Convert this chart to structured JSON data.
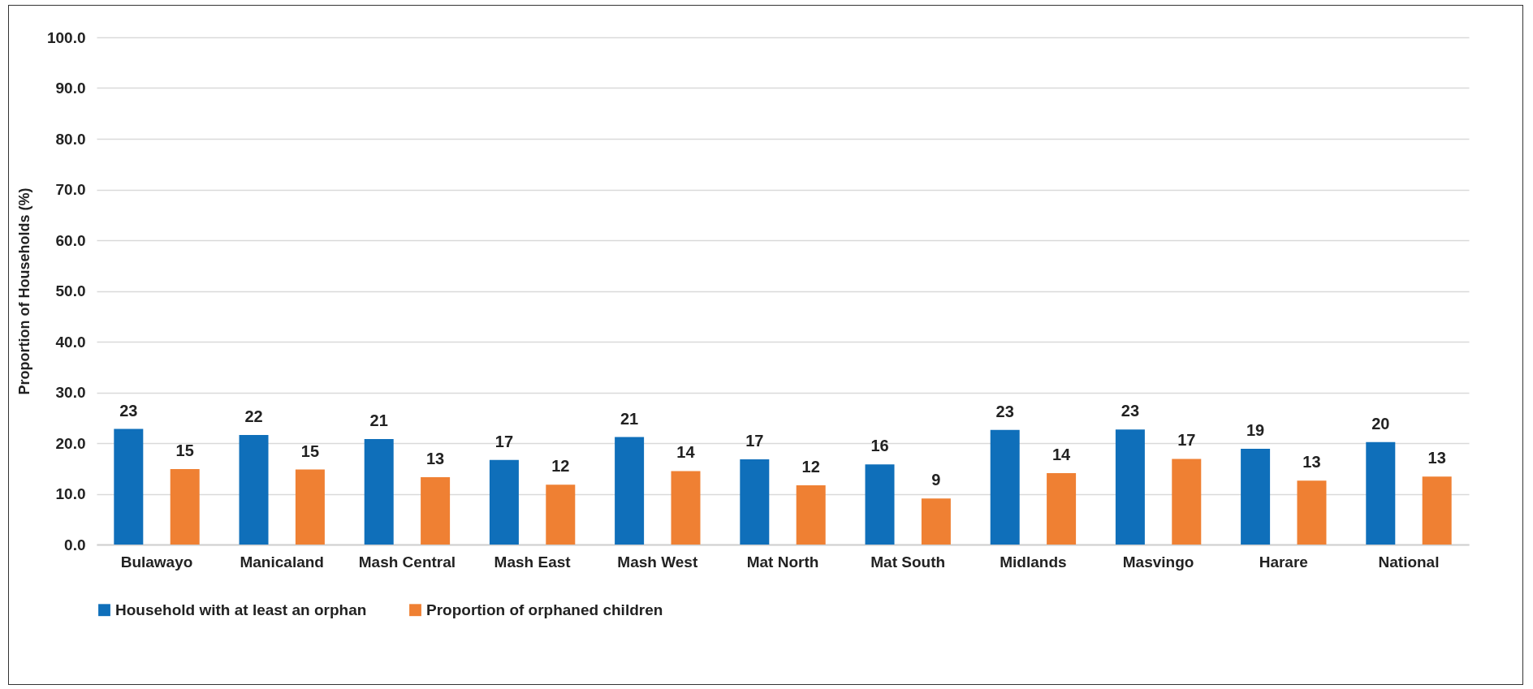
{
  "chart_data": {
    "type": "bar",
    "ylabel": "Proportion of Households (%)",
    "categories": [
      "Bulawayo",
      "Manicaland",
      "Mash Central",
      "Mash East",
      "Mash West",
      "Mat North",
      "Mat South",
      "Midlands",
      "Masvingo",
      "Harare",
      "National"
    ],
    "series": [
      {
        "name": "Household with at least an orphan",
        "color": "#0f6fba",
        "values": [
          22.8,
          21.6,
          20.8,
          16.7,
          21.2,
          16.8,
          15.8,
          22.6,
          22.7,
          18.9,
          20.2
        ],
        "value_labels": [
          "23",
          "22",
          "21",
          "17",
          "21",
          "17",
          "16",
          "23",
          "23",
          "19",
          "20"
        ]
      },
      {
        "name": "Proportion of orphaned children",
        "color": "#ef8033",
        "values": [
          14.9,
          14.8,
          13.3,
          11.8,
          14.5,
          11.7,
          9.1,
          14.1,
          16.9,
          12.6,
          13.4
        ],
        "value_labels": [
          "15",
          "15",
          "13",
          "12",
          "14",
          "12",
          "9",
          "14",
          "17",
          "13",
          "13"
        ]
      }
    ],
    "ylim": [
      0,
      100
    ],
    "yticks": [
      {
        "value": 0,
        "label": "0.0"
      },
      {
        "value": 10,
        "label": "10.0"
      },
      {
        "value": 20,
        "label": "20.0"
      },
      {
        "value": 30,
        "label": "30.0"
      },
      {
        "value": 40,
        "label": "40.0"
      },
      {
        "value": 50,
        "label": "50.0"
      },
      {
        "value": 60,
        "label": "60.0"
      },
      {
        "value": 70,
        "label": "70.0"
      },
      {
        "value": 80,
        "label": "80.0"
      },
      {
        "value": 90,
        "label": "90.0"
      },
      {
        "value": 100,
        "label": "100.0"
      }
    ],
    "grid": "y",
    "legend": "bottom"
  }
}
